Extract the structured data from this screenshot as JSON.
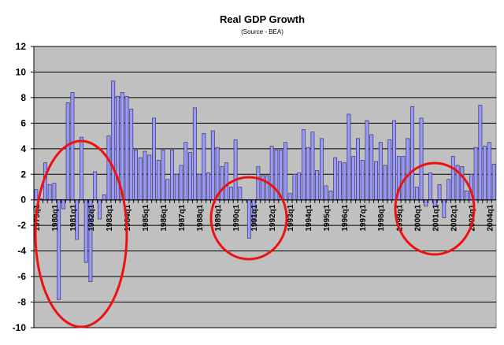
{
  "chart_data": {
    "type": "bar",
    "title": "Real GDP Growth",
    "subtitle": "(Source - BEA)",
    "xlabel": "",
    "ylabel": "",
    "ylim": [
      -10,
      12
    ],
    "yticks": [
      12,
      10,
      8,
      6,
      4,
      2,
      0,
      -2,
      -4,
      -6,
      -8,
      -10
    ],
    "grid": true,
    "legend": "none",
    "start_year": 1979,
    "tick_labels": [
      "1979q1",
      "1980q1",
      "1981q1",
      "1982q1",
      "1983q1",
      "1984q1",
      "1985q1",
      "1986q1",
      "1987q1",
      "1988q1",
      "1989q1",
      "1990q1",
      "1991q1",
      "1992q1",
      "1993q1",
      "1994q1",
      "1995q1",
      "1996q1",
      "1997q1",
      "1998q1",
      "1999q1",
      "2000q1",
      "2001q1",
      "2002q1",
      "2003q1",
      "2004q1"
    ],
    "values": [
      0.8,
      0.1,
      2.9,
      1.2,
      1.3,
      -7.8,
      -0.7,
      7.6,
      8.4,
      -3.1,
      4.9,
      -4.9,
      -6.4,
      2.2,
      -1.5,
      0.4,
      5.0,
      9.3,
      8.1,
      8.4,
      8.1,
      7.1,
      3.9,
      3.3,
      3.8,
      3.5,
      6.4,
      3.1,
      3.9,
      1.6,
      3.9,
      2.0,
      2.7,
      4.5,
      3.7,
      7.2,
      2.0,
      5.2,
      2.1,
      5.4,
      4.1,
      2.6,
      2.9,
      1.0,
      4.7,
      1.0,
      0.0,
      -3.0,
      -1.8,
      2.6,
      1.9,
      1.9,
      4.2,
      3.9,
      3.9,
      4.5,
      0.5,
      2.0,
      2.1,
      5.5,
      4.1,
      5.3,
      2.3,
      4.8,
      1.1,
      0.7,
      3.3,
      3.0,
      2.9,
      6.7,
      3.4,
      4.8,
      3.1,
      6.2,
      5.1,
      3.0,
      4.5,
      2.7,
      4.7,
      6.2,
      3.4,
      3.4,
      4.8,
      7.3,
      1.0,
      6.4,
      -0.5,
      2.1,
      -0.5,
      1.2,
      -1.4,
      1.6,
      3.4,
      2.7,
      2.6,
      0.7,
      2.0,
      4.1,
      7.4,
      4.2,
      4.5,
      2.8
    ],
    "annotations": [
      "recession-circle-early-1980s",
      "recession-circle-1990-91",
      "recession-circle-2001"
    ],
    "colors": {
      "bar": "#9999ff",
      "bar_outline": "#333366",
      "plot_bg": "#c0c0c0",
      "annotation": "#ee1111"
    }
  }
}
